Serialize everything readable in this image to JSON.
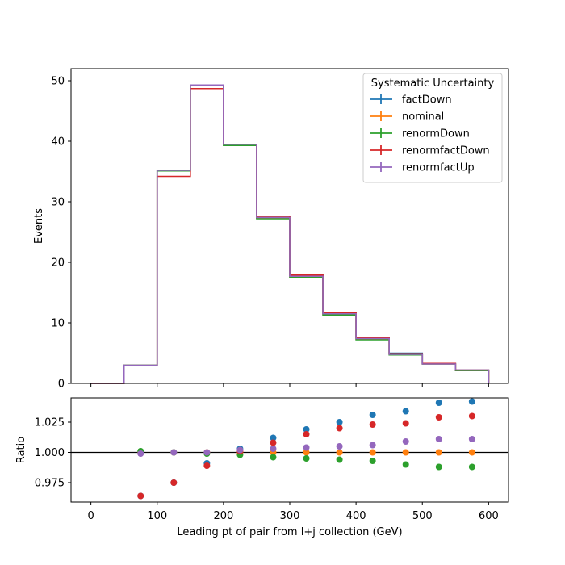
{
  "chart_data": {
    "type": "step-histogram-with-ratio",
    "xlabel": "Leading pt of pair from l+j collection (GeV)",
    "bin_edges": [
      0,
      50,
      100,
      150,
      200,
      250,
      300,
      350,
      400,
      450,
      500,
      550,
      600
    ],
    "xlim": [
      -30,
      630
    ],
    "xticks": [
      0,
      100,
      200,
      300,
      400,
      500,
      600
    ],
    "top": {
      "ylabel": "Events",
      "ylim": [
        0,
        52
      ],
      "yticks": [
        0,
        10,
        20,
        30,
        40,
        50
      ],
      "legend_title": "Systematic Uncertainty",
      "legend_loc": "upper right",
      "series": [
        {
          "name": "factDown",
          "color": "#1f77b4",
          "values": [
            0,
            3.0,
            35.2,
            49.2,
            39.5,
            27.6,
            17.9,
            11.6,
            7.5,
            5.0,
            3.3,
            2.2
          ]
        },
        {
          "name": "nominal",
          "color": "#ff7f0e",
          "values": [
            0,
            3.0,
            35.1,
            49.2,
            39.4,
            27.3,
            17.6,
            11.4,
            7.3,
            4.8,
            3.2,
            2.1
          ]
        },
        {
          "name": "renormDown",
          "color": "#2ca02c",
          "values": [
            0,
            3.0,
            35.1,
            49.2,
            39.3,
            27.2,
            17.5,
            11.3,
            7.2,
            4.7,
            3.2,
            2.1
          ]
        },
        {
          "name": "renormfactDown",
          "color": "#d62728",
          "values": [
            0,
            2.9,
            34.2,
            48.7,
            39.5,
            27.6,
            17.9,
            11.7,
            7.5,
            4.9,
            3.3,
            2.2
          ]
        },
        {
          "name": "renormfactUp",
          "color": "#9467bd",
          "values": [
            0,
            3.0,
            35.2,
            49.3,
            39.5,
            27.4,
            17.7,
            11.5,
            7.4,
            4.8,
            3.2,
            2.2
          ]
        }
      ]
    },
    "bottom": {
      "ylabel": "Ratio",
      "ylim": [
        0.959,
        1.045
      ],
      "yticks": [
        0.975,
        1.0,
        1.025
      ],
      "ytick_labels": [
        "0.975",
        "1.000",
        "1.025"
      ],
      "reference_line": 1.0,
      "x": [
        75,
        125,
        175,
        225,
        275,
        325,
        375,
        425,
        475,
        525,
        575
      ],
      "series": [
        {
          "name": "factDown",
          "color": "#1f77b4",
          "values": [
            0.964,
            0.975,
            0.991,
            1.003,
            1.012,
            1.019,
            1.025,
            1.031,
            1.034,
            1.041,
            1.042
          ]
        },
        {
          "name": "nominal",
          "color": "#ff7f0e",
          "values": [
            1.0,
            1.0,
            1.0,
            1.0,
            1.0,
            1.0,
            1.0,
            1.0,
            1.0,
            1.0,
            1.0
          ]
        },
        {
          "name": "renormDown",
          "color": "#2ca02c",
          "values": [
            1.001,
            1.0,
            0.999,
            0.998,
            0.996,
            0.995,
            0.994,
            0.993,
            0.99,
            0.988,
            0.988
          ]
        },
        {
          "name": "renormfactDown",
          "color": "#d62728",
          "values": [
            0.964,
            0.975,
            0.989,
            1.001,
            1.008,
            1.015,
            1.02,
            1.023,
            1.024,
            1.029,
            1.03
          ]
        },
        {
          "name": "renormfactUp",
          "color": "#9467bd",
          "values": [
            0.999,
            1.0,
            1.0,
            1.002,
            1.003,
            1.004,
            1.005,
            1.006,
            1.009,
            1.011,
            1.011
          ]
        }
      ]
    }
  }
}
